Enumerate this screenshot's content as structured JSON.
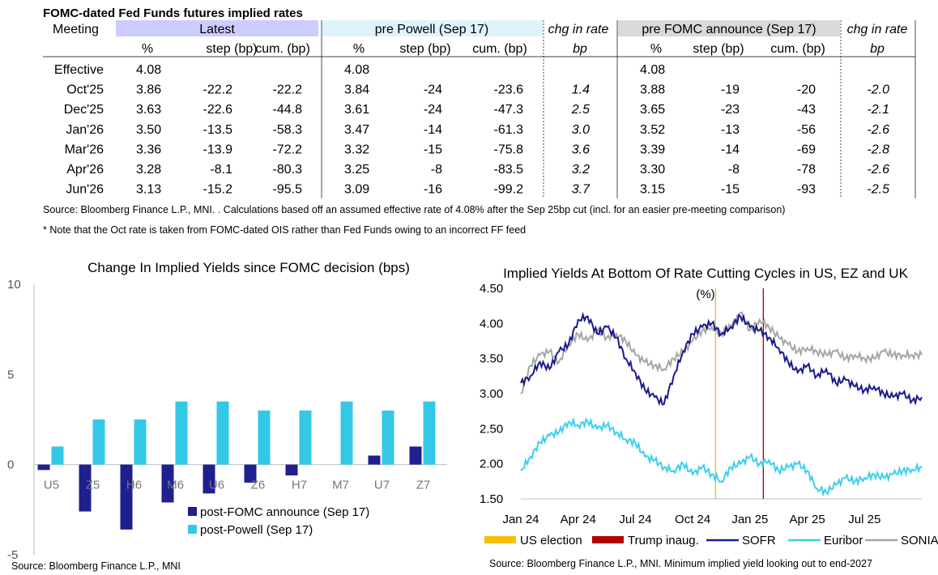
{
  "table": {
    "title": "FOMC-dated Fed Funds futures implied rates",
    "meeting_label": "Meeting",
    "groups": {
      "latest": "Latest",
      "pre_powell": "pre Powell (Sep 17)",
      "chg1": "chg in rate",
      "pre_fomc": "pre FOMC announce (Sep 17)",
      "chg2": "chg in rate"
    },
    "subheaders": [
      "%",
      "step (bp)",
      "cum. (bp)",
      "%",
      "step (bp)",
      "cum. (bp)",
      "bp",
      "%",
      "step (bp)",
      "cum. (bp)",
      "bp"
    ],
    "rows": [
      [
        "Effective",
        "4.08",
        "",
        "",
        "4.08",
        "",
        "",
        "",
        "4.08",
        "",
        "",
        ""
      ],
      [
        "Oct'25",
        "3.86",
        "-22.2",
        "-22.2",
        "3.84",
        "-24",
        "-23.6",
        "1.4",
        "3.88",
        "-19",
        "-20",
        "-2.0"
      ],
      [
        "Dec'25",
        "3.63",
        "-22.6",
        "-44.8",
        "3.61",
        "-24",
        "-47.3",
        "2.5",
        "3.65",
        "-23",
        "-43",
        "-2.1"
      ],
      [
        "Jan'26",
        "3.50",
        "-13.5",
        "-58.3",
        "3.47",
        "-14",
        "-61.3",
        "3.0",
        "3.52",
        "-13",
        "-56",
        "-2.6"
      ],
      [
        "Mar'26",
        "3.36",
        "-13.9",
        "-72.2",
        "3.32",
        "-15",
        "-75.8",
        "3.6",
        "3.39",
        "-14",
        "-69",
        "-2.8"
      ],
      [
        "Apr'26",
        "3.28",
        "-8.1",
        "-80.3",
        "3.25",
        "-8",
        "-83.5",
        "3.2",
        "3.30",
        "-8",
        "-78",
        "-2.6"
      ],
      [
        "Jun'26",
        "3.13",
        "-15.2",
        "-95.5",
        "3.09",
        "-16",
        "-99.2",
        "3.7",
        "3.15",
        "-15",
        "-93",
        "-2.5"
      ]
    ],
    "source": "Source: Bloomberg Finance L.P., MNI. . Calculations based off an assumed effective rate of 4.08% after the Sep 25bp cut (incl. for an easier pre-meeting comparison)",
    "note": "* Note that the Oct rate is taken from FOMC-dated OIS rather than Fed Funds owing to an incorrect FF feed",
    "colors": {
      "latest_header": "#ccccff",
      "pre_powell_header": "#dff3fb",
      "pre_fomc_header": "#d9d9d9"
    }
  },
  "chart_data": [
    {
      "type": "bar",
      "title": "Change In Implied Yields since FOMC decision (bps)",
      "categories": [
        "U5",
        "Z5",
        "H6",
        "M6",
        "U6",
        "Z6",
        "H7",
        "M7",
        "U7",
        "Z7"
      ],
      "series": [
        {
          "name": "post-FOMC announce (Sep 17)",
          "color": "#1f1f8f",
          "values": [
            -0.3,
            -2.6,
            -3.6,
            -2.1,
            -1.6,
            -1.0,
            -0.6,
            0.0,
            0.5,
            1.0
          ]
        },
        {
          "name": "post-Powell (Sep 17)",
          "color": "#33c9e6",
          "values": [
            1.0,
            2.5,
            2.5,
            3.5,
            3.5,
            3.0,
            3.0,
            3.5,
            3.0,
            3.5
          ]
        }
      ],
      "yticks": [
        "10",
        "5",
        "0",
        "-5"
      ],
      "ylim": [
        -5,
        10
      ],
      "source": "Source: Bloomberg Finance L.P., MNI"
    },
    {
      "type": "line",
      "title": "Implied Yields At Bottom Of Rate Cutting Cycles in US, EZ and UK",
      "ylabel": "(%)",
      "xticks": [
        "Jan 24",
        "Apr 24",
        "Jul 24",
        "Oct 24",
        "Jan 25",
        "Apr 25",
        "Jul 25"
      ],
      "yticks": [
        "4.50",
        "4.00",
        "3.50",
        "3.00",
        "2.50",
        "2.00",
        "1.50"
      ],
      "ylim": [
        1.5,
        4.5
      ],
      "vlines": [
        {
          "name": "US election",
          "color": "#f5c000",
          "date_index": 10.2
        },
        {
          "name": "Trump inaug.",
          "color": "#b00000",
          "date_index": 12.7
        }
      ],
      "series": [
        {
          "name": "SOFR",
          "color": "#1a1a8c",
          "x_month_index": [
            0,
            0.5,
            1,
            1.5,
            2,
            2.5,
            3,
            3.5,
            4,
            4.5,
            5,
            5.5,
            6,
            6.5,
            7,
            7.5,
            8,
            8.5,
            9,
            9.5,
            10,
            10.5,
            11,
            11.5,
            12,
            12.5,
            13,
            13.5,
            14,
            14.5,
            15,
            15.5,
            16,
            16.5,
            17,
            17.5,
            18,
            18.5,
            19,
            19.5,
            20,
            20.5,
            21
          ],
          "values": [
            3.15,
            3.25,
            3.45,
            3.35,
            3.6,
            3.7,
            4.05,
            4.1,
            3.85,
            3.95,
            3.8,
            3.5,
            3.3,
            3.05,
            2.95,
            2.85,
            3.25,
            3.6,
            3.85,
            3.95,
            4.0,
            3.85,
            3.95,
            4.1,
            3.95,
            3.9,
            3.8,
            3.65,
            3.45,
            3.3,
            3.4,
            3.25,
            3.35,
            3.15,
            3.2,
            3.1,
            3.05,
            3.1,
            3.0,
            2.95,
            3.0,
            2.9,
            2.95
          ]
        },
        {
          "name": "Euribor",
          "color": "#3cd0ec",
          "x_month_index": [
            0,
            0.5,
            1,
            1.5,
            2,
            2.5,
            3,
            3.5,
            4,
            4.5,
            5,
            5.5,
            6,
            6.5,
            7,
            7.5,
            8,
            8.5,
            9,
            9.5,
            10,
            10.5,
            11,
            11.5,
            12,
            12.5,
            13,
            13.5,
            14,
            14.5,
            15,
            15.5,
            16,
            16.5,
            17,
            17.5,
            18,
            18.5,
            19,
            19.5,
            20,
            20.5,
            21
          ],
          "values": [
            1.9,
            2.1,
            2.3,
            2.4,
            2.45,
            2.6,
            2.55,
            2.6,
            2.5,
            2.55,
            2.45,
            2.35,
            2.3,
            2.1,
            2.05,
            1.95,
            1.9,
            2.0,
            1.85,
            1.95,
            1.85,
            1.75,
            1.95,
            2.0,
            2.1,
            2.0,
            2.05,
            1.9,
            1.95,
            2.0,
            1.9,
            1.65,
            1.6,
            1.7,
            1.8,
            1.75,
            1.8,
            1.85,
            1.8,
            1.85,
            1.9,
            1.92,
            1.95
          ]
        },
        {
          "name": "SONIA",
          "color": "#a6a6a6",
          "x_month_index": [
            0,
            0.5,
            1,
            1.5,
            2,
            2.5,
            3,
            3.5,
            4,
            4.5,
            5,
            5.5,
            6,
            6.5,
            7,
            7.5,
            8,
            8.5,
            9,
            9.5,
            10,
            10.5,
            11,
            11.5,
            12,
            12.5,
            13,
            13.5,
            14,
            14.5,
            15,
            15.5,
            16,
            16.5,
            17,
            17.5,
            18,
            18.5,
            19,
            19.5,
            20,
            20.5,
            21
          ],
          "values": [
            3.0,
            3.4,
            3.55,
            3.6,
            3.45,
            3.7,
            3.85,
            3.75,
            3.9,
            3.8,
            3.85,
            3.75,
            3.55,
            3.45,
            3.4,
            3.35,
            3.5,
            3.6,
            3.75,
            3.9,
            3.95,
            3.85,
            3.95,
            4.15,
            3.9,
            4.05,
            3.95,
            3.8,
            3.7,
            3.6,
            3.65,
            3.6,
            3.55,
            3.6,
            3.5,
            3.55,
            3.5,
            3.5,
            3.6,
            3.55,
            3.55,
            3.55,
            3.55
          ]
        }
      ],
      "source": "Source: Bloomberg Finance L.P., MNI. Minimum implied yield looking out to end-2027"
    }
  ]
}
